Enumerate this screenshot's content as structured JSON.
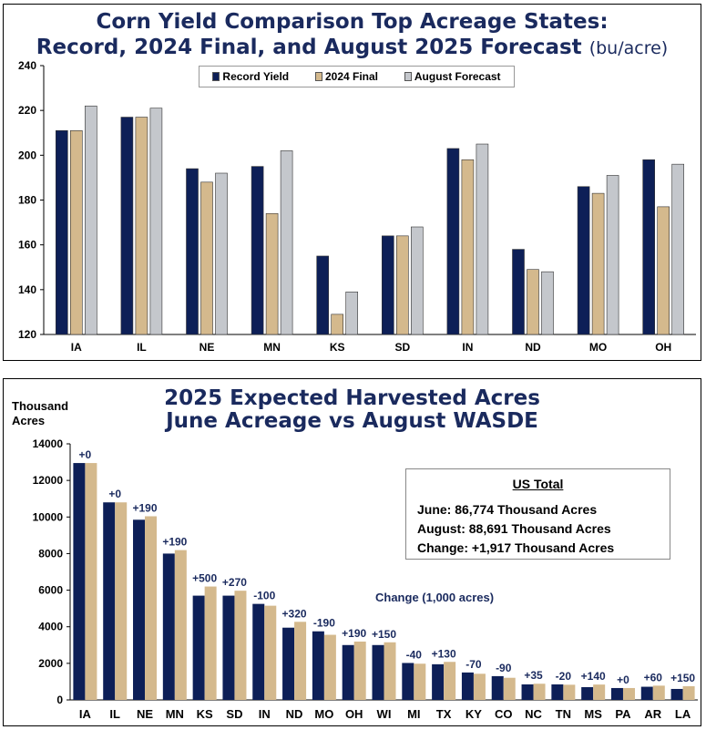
{
  "colors": {
    "record": "#0d1f57",
    "final2024": "#d4b98d",
    "forecast": "#c4c7cc",
    "june": "#0d1f57",
    "august": "#d4b98d",
    "title": "#1a2a5e"
  },
  "top": {
    "title_line1": "Corn Yield Comparison Top Acreage States:",
    "title_line2": "Record, 2024 Final, and August 2025 Forecast",
    "title_unit": "(bu/acre)",
    "legend": [
      "Record Yield",
      "2024 Final",
      "August Forecast"
    ]
  },
  "bottom": {
    "title_line1": "2025 Expected Harvested Acres",
    "title_line2": "June Acreage vs August WASDE",
    "y_unit_line1": "Thousand",
    "y_unit_line2": "Acres",
    "change_note": "Change (1,000 acres)",
    "totals": {
      "header": "US Total",
      "june": "June: 86,774 Thousand Acres",
      "august": "August: 88,691 Thousand Acres",
      "change": "Change: +1,917 Thousand Acres"
    }
  },
  "chart_data": [
    {
      "type": "bar",
      "title": "Corn Yield Comparison Top Acreage States: Record, 2024 Final, and August 2025 Forecast (bu/acre)",
      "categories": [
        "IA",
        "IL",
        "NE",
        "MN",
        "KS",
        "SD",
        "IN",
        "ND",
        "MO",
        "OH"
      ],
      "series": [
        {
          "name": "Record Yield",
          "values": [
            211,
            217,
            194,
            195,
            155,
            164,
            203,
            158,
            186,
            198
          ]
        },
        {
          "name": "2024 Final",
          "values": [
            211,
            217,
            188,
            174,
            129,
            164,
            198,
            149,
            183,
            177
          ]
        },
        {
          "name": "August Forecast",
          "values": [
            222,
            221,
            192,
            202,
            139,
            168,
            205,
            148,
            191,
            196
          ]
        }
      ],
      "ylim": [
        120,
        240
      ],
      "yticks": [
        120,
        140,
        160,
        180,
        200,
        220,
        240
      ],
      "legend_position": "top",
      "grid": false
    },
    {
      "type": "bar",
      "title": "2025 Expected Harvested Acres June Acreage vs August WASDE",
      "ylabel": "Thousand Acres",
      "categories": [
        "IA",
        "IL",
        "NE",
        "MN",
        "KS",
        "SD",
        "IN",
        "ND",
        "MO",
        "OH",
        "WI",
        "MI",
        "TX",
        "KY",
        "CO",
        "NC",
        "TN",
        "MS",
        "PA",
        "AR",
        "LA"
      ],
      "series": [
        {
          "values": [
            12950,
            10800,
            9850,
            8000,
            5700,
            5700,
            5250,
            3950,
            3750,
            3000,
            3000,
            2020,
            1950,
            1500,
            1300,
            850,
            850,
            700,
            650,
            720,
            600
          ]
        },
        {
          "values": [
            12950,
            10800,
            10040,
            8190,
            6200,
            5970,
            5150,
            4270,
            3560,
            3190,
            3150,
            1980,
            2080,
            1430,
            1210,
            885,
            830,
            840,
            650,
            780,
            750
          ]
        }
      ],
      "data_labels": [
        "+0",
        "+0",
        "+190",
        "+190",
        "+500",
        "+270",
        "-100",
        "+320",
        "-190",
        "+190",
        "+150",
        "-40",
        "+130",
        "-70",
        "-90",
        "+35",
        "-20",
        "+140",
        "+0",
        "+60",
        "+150"
      ],
      "ylim": [
        0,
        14000
      ],
      "yticks": [
        0,
        2000,
        4000,
        6000,
        8000,
        10000,
        12000,
        14000
      ],
      "grid": false
    }
  ]
}
